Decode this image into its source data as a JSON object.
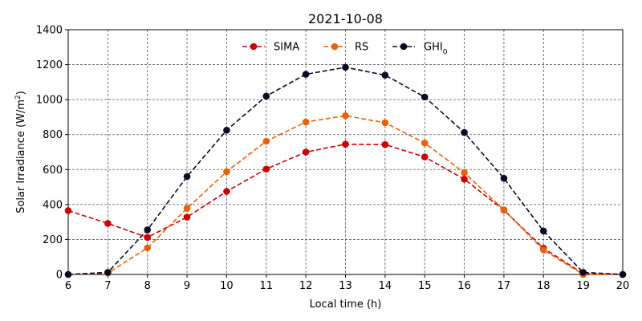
{
  "chart_data": {
    "type": "line",
    "title": "2021-10-08",
    "xlabel": "Local time (h)",
    "ylabel": "Solar Irradiance (W/m²)",
    "xlim": [
      6,
      20
    ],
    "ylim": [
      0,
      1400
    ],
    "x_ticks": [
      6,
      7,
      8,
      9,
      10,
      11,
      12,
      13,
      14,
      15,
      16,
      17,
      18,
      19,
      20
    ],
    "y_ticks": [
      0,
      200,
      400,
      600,
      800,
      1000,
      1200,
      1400
    ],
    "grid": true,
    "legend_position": "top-center",
    "x": [
      6,
      7,
      8,
      9,
      10,
      11,
      12,
      13,
      14,
      15,
      16,
      17,
      18,
      19,
      20
    ],
    "series": [
      {
        "name": "SIMA",
        "color": "#cc0000",
        "values": [
          365,
          292,
          212,
          328,
          475,
          603,
          700,
          745,
          743,
          672,
          545,
          368,
          150,
          5,
          0
        ]
      },
      {
        "name": "RS",
        "color": "#e8620c",
        "values": [
          0,
          8,
          152,
          378,
          588,
          762,
          872,
          908,
          868,
          752,
          582,
          370,
          140,
          0,
          0
        ]
      },
      {
        "name": "GHI",
        "name_subscript": "0",
        "color": "#0b0b24",
        "values": [
          0,
          12,
          255,
          560,
          825,
          1020,
          1145,
          1185,
          1140,
          1015,
          812,
          550,
          248,
          12,
          0
        ]
      }
    ]
  }
}
